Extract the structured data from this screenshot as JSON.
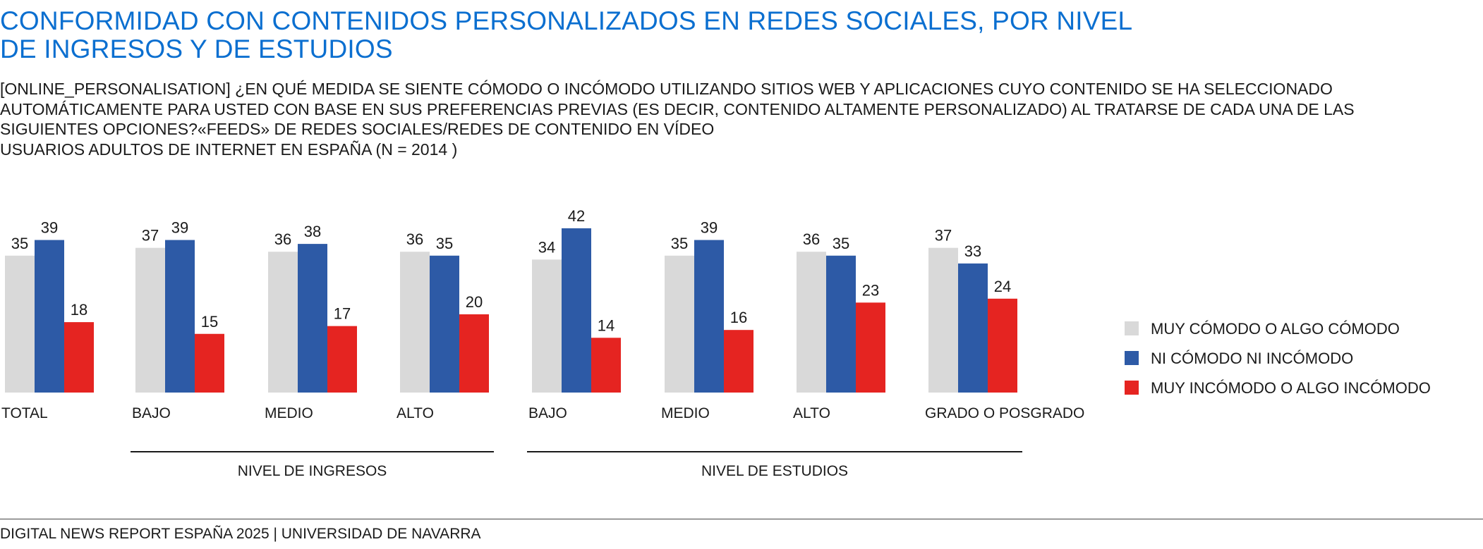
{
  "title": "CONFORMIDAD CON CONTENIDOS PERSONALIZADOS EN REDES SOCIALES, POR NIVEL DE INGRESOS Y DE ESTUDIOS",
  "subtitle_lines": [
    "[ONLINE_PERSONALISATION] ¿EN QUÉ MEDIDA SE SIENTE CÓMODO O INCÓMODO UTILIZANDO SITIOS WEB Y APLICACIONES CUYO CONTENIDO SE HA SELECCIONADO",
    "AUTOMÁTICAMENTE PARA USTED CON BASE EN SUS PREFERENCIAS PREVIAS (ES DECIR, CONTENIDO ALTAMENTE PERSONALIZADO) AL TRATARSE DE CADA UNA DE LAS",
    "SIGUIENTES OPCIONES?«FEEDS» DE REDES SOCIALES/REDES DE CONTENIDO EN VÍDEO",
    "USUARIOS ADULTOS DE INTERNET EN ESPAÑA (N = 2014 )"
  ],
  "footer": "DIGITAL NEWS REPORT ESPAÑA 2025 | UNIVERSIDAD DE NAVARRA",
  "chart_data": {
    "type": "bar",
    "categories": [
      "TOTAL",
      "BAJO",
      "MEDIO",
      "ALTO",
      "BAJO",
      "MEDIO",
      "ALTO",
      "GRADO O POSGRADO"
    ],
    "groups": [
      {
        "label": "NIVEL DE INGRESOS",
        "categories": [
          1,
          2,
          3
        ]
      },
      {
        "label": "NIVEL DE ESTUDIOS",
        "categories": [
          4,
          5,
          6,
          7
        ]
      }
    ],
    "series": [
      {
        "name": "MUY CÓMODO O ALGO CÓMODO",
        "color": "#d9d9d9",
        "values": [
          35,
          37,
          36,
          36,
          34,
          35,
          36,
          37
        ]
      },
      {
        "name": "NI CÓMODO NI INCÓMODO",
        "color": "#2d5aa6",
        "values": [
          39,
          39,
          38,
          35,
          42,
          39,
          35,
          33
        ]
      },
      {
        "name": "MUY INCÓMODO O ALGO INCÓMODO",
        "color": "#e52421",
        "values": [
          18,
          15,
          17,
          20,
          14,
          16,
          23,
          24
        ]
      }
    ],
    "legend_position": "right",
    "grid": false
  }
}
